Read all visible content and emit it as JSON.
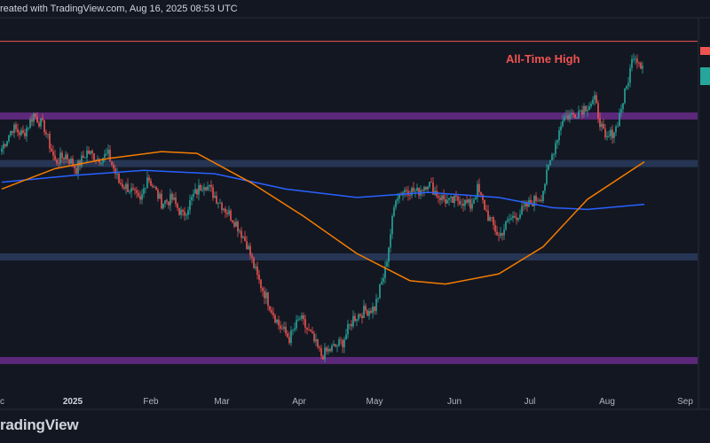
{
  "header": {
    "text": "reated with TradingView.com, Aug 16, 2025 08:53 UTC"
  },
  "brand": {
    "text": "radingView"
  },
  "colors": {
    "background": "#131722",
    "bull": "#26a69a",
    "bear": "#ef5350",
    "ma_long": "#2962ff",
    "ma_short": "#f57c00",
    "zone_purple": "#6a2c8a",
    "zone_blue": "#2a3b5c",
    "ath_line": "#ef5350"
  },
  "chart_data": {
    "type": "candlestick",
    "title": "",
    "xlabel": "",
    "ylabel": "",
    "x_ticks": [
      {
        "label": "c",
        "bold": false
      },
      {
        "label": "2025",
        "bold": true
      },
      {
        "label": "Feb",
        "bold": false
      },
      {
        "label": "Mar",
        "bold": false
      },
      {
        "label": "Apr",
        "bold": false
      },
      {
        "label": "May",
        "bold": false
      },
      {
        "label": "Jun",
        "bold": false
      },
      {
        "label": "Jul",
        "bold": false
      },
      {
        "label": "Aug",
        "bold": false
      },
      {
        "label": "Sep",
        "bold": false
      }
    ],
    "annotations": [
      {
        "text": "All-Time High"
      }
    ],
    "price_path": [
      {
        "i": 0,
        "p": 0.72
      },
      {
        "i": 6,
        "p": 0.78
      },
      {
        "i": 12,
        "p": 0.76
      },
      {
        "i": 18,
        "p": 0.82
      },
      {
        "i": 24,
        "p": 0.78
      },
      {
        "i": 30,
        "p": 0.68
      },
      {
        "i": 36,
        "p": 0.7
      },
      {
        "i": 42,
        "p": 0.66
      },
      {
        "i": 48,
        "p": 0.71
      },
      {
        "i": 54,
        "p": 0.69
      },
      {
        "i": 60,
        "p": 0.7
      },
      {
        "i": 66,
        "p": 0.62
      },
      {
        "i": 72,
        "p": 0.6
      },
      {
        "i": 78,
        "p": 0.56
      },
      {
        "i": 82,
        "p": 0.64
      },
      {
        "i": 86,
        "p": 0.6
      },
      {
        "i": 90,
        "p": 0.56
      },
      {
        "i": 96,
        "p": 0.57
      },
      {
        "i": 102,
        "p": 0.52
      },
      {
        "i": 108,
        "p": 0.58
      },
      {
        "i": 114,
        "p": 0.62
      },
      {
        "i": 120,
        "p": 0.58
      },
      {
        "i": 126,
        "p": 0.54
      },
      {
        "i": 132,
        "p": 0.5
      },
      {
        "i": 138,
        "p": 0.44
      },
      {
        "i": 144,
        "p": 0.34
      },
      {
        "i": 150,
        "p": 0.27
      },
      {
        "i": 156,
        "p": 0.2
      },
      {
        "i": 162,
        "p": 0.16
      },
      {
        "i": 168,
        "p": 0.22
      },
      {
        "i": 174,
        "p": 0.17
      },
      {
        "i": 180,
        "p": 0.11
      },
      {
        "i": 186,
        "p": 0.13
      },
      {
        "i": 192,
        "p": 0.15
      },
      {
        "i": 198,
        "p": 0.22
      },
      {
        "i": 204,
        "p": 0.24
      },
      {
        "i": 210,
        "p": 0.25
      },
      {
        "i": 216,
        "p": 0.36
      },
      {
        "i": 222,
        "p": 0.58
      },
      {
        "i": 228,
        "p": 0.6
      },
      {
        "i": 234,
        "p": 0.59
      },
      {
        "i": 240,
        "p": 0.62
      },
      {
        "i": 246,
        "p": 0.58
      },
      {
        "i": 252,
        "p": 0.56
      },
      {
        "i": 258,
        "p": 0.57
      },
      {
        "i": 264,
        "p": 0.55
      },
      {
        "i": 268,
        "p": 0.6
      },
      {
        "i": 274,
        "p": 0.52
      },
      {
        "i": 280,
        "p": 0.46
      },
      {
        "i": 286,
        "p": 0.51
      },
      {
        "i": 292,
        "p": 0.53
      },
      {
        "i": 298,
        "p": 0.56
      },
      {
        "i": 304,
        "p": 0.58
      },
      {
        "i": 310,
        "p": 0.7
      },
      {
        "i": 316,
        "p": 0.81
      },
      {
        "i": 322,
        "p": 0.82
      },
      {
        "i": 328,
        "p": 0.84
      },
      {
        "i": 334,
        "p": 0.86
      },
      {
        "i": 340,
        "p": 0.74
      },
      {
        "i": 346,
        "p": 0.78
      },
      {
        "i": 352,
        "p": 0.9
      },
      {
        "i": 356,
        "p": 1.0
      },
      {
        "i": 360,
        "p": 0.97
      }
    ],
    "moving_averages": [
      {
        "name": "",
        "color_key": "ma_long",
        "points": [
          [
            0,
            0.62
          ],
          [
            40,
            0.64
          ],
          [
            80,
            0.655
          ],
          [
            120,
            0.645
          ],
          [
            160,
            0.6
          ],
          [
            200,
            0.575
          ],
          [
            240,
            0.59
          ],
          [
            280,
            0.575
          ],
          [
            310,
            0.545
          ],
          [
            330,
            0.54
          ],
          [
            362,
            0.555
          ]
        ]
      },
      {
        "name": "",
        "color_key": "ma_short",
        "points": [
          [
            0,
            0.6
          ],
          [
            30,
            0.66
          ],
          [
            60,
            0.69
          ],
          [
            90,
            0.71
          ],
          [
            110,
            0.705
          ],
          [
            140,
            0.62
          ],
          [
            170,
            0.52
          ],
          [
            200,
            0.41
          ],
          [
            230,
            0.33
          ],
          [
            250,
            0.32
          ],
          [
            280,
            0.35
          ],
          [
            305,
            0.43
          ],
          [
            330,
            0.57
          ],
          [
            362,
            0.68
          ]
        ]
      }
    ],
    "zones": [
      {
        "color_key": "zone_purple",
        "level": 0.815
      },
      {
        "color_key": "zone_blue",
        "level": 0.675
      },
      {
        "color_key": "zone_blue",
        "level": 0.4
      },
      {
        "color_key": "zone_purple",
        "level": 0.095
      }
    ],
    "ath_level": 1.035,
    "candle_count": 362
  }
}
